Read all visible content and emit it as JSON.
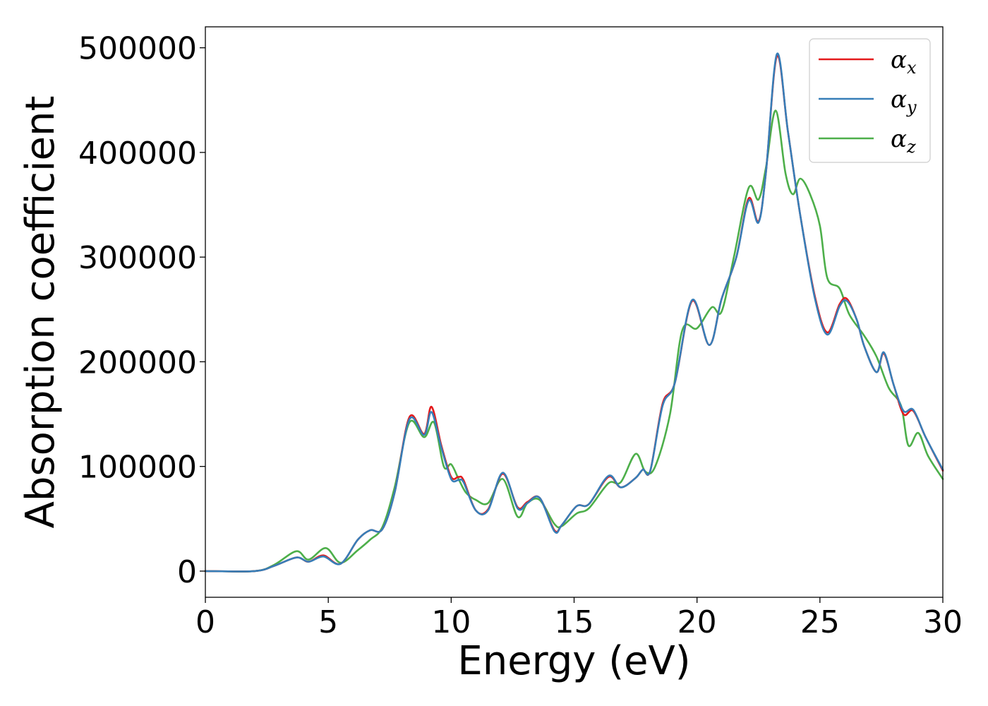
{
  "chart_data": {
    "type": "line",
    "title": "",
    "xlabel": "Energy (eV)",
    "ylabel": "Absorption coefficient",
    "xlim": [
      0,
      30
    ],
    "ylim": [
      -25000,
      520000
    ],
    "xticks": [
      0,
      5,
      10,
      15,
      20,
      25,
      30
    ],
    "yticks": [
      0,
      100000,
      200000,
      300000,
      400000,
      500000
    ],
    "grid": false,
    "legend_position": "top-right",
    "series": [
      {
        "name": "αx",
        "label_main": "α",
        "label_sub": "x",
        "color": "#e41a1c",
        "x": [
          0,
          2,
          2.8,
          3.7,
          4.2,
          4.8,
          5.5,
          6.2,
          6.7,
          7.2,
          7.7,
          8.3,
          8.9,
          9.2,
          9.6,
          10.0,
          10.3,
          10.5,
          11.0,
          11.5,
          12.1,
          12.7,
          13.1,
          13.6,
          14.2,
          14.5,
          15.1,
          15.6,
          16.4,
          16.9,
          17.5,
          17.8,
          18.1,
          18.6,
          19.1,
          19.8,
          20.5,
          21.0,
          21.6,
          22.1,
          22.5,
          22.8,
          23.25,
          23.7,
          24.2,
          24.8,
          25.3,
          25.8,
          26.1,
          26.5,
          26.8,
          27.3,
          27.6,
          28.0,
          28.4,
          28.8,
          29.3,
          30.0
        ],
        "y": [
          0,
          0,
          5000,
          13000,
          9000,
          15000,
          7000,
          30000,
          39000,
          40000,
          75000,
          147000,
          131000,
          157000,
          120000,
          90000,
          90000,
          87000,
          58000,
          59000,
          93000,
          61000,
          66000,
          70000,
          39000,
          44000,
          62000,
          64000,
          90000,
          80000,
          89000,
          97000,
          96000,
          160000,
          180000,
          258000,
          216000,
          260000,
          300000,
          356000,
          334000,
          380000,
          492000,
          420000,
          340000,
          262000,
          228000,
          255000,
          260000,
          240000,
          215000,
          190000,
          208000,
          178000,
          150000,
          153000,
          128000,
          96000
        ]
      },
      {
        "name": "αy",
        "label_main": "α",
        "label_sub": "y",
        "color": "#377eb8",
        "x": [
          0,
          2,
          2.8,
          3.7,
          4.2,
          4.8,
          5.5,
          6.2,
          6.7,
          7.2,
          7.7,
          8.3,
          8.9,
          9.2,
          9.6,
          10.0,
          10.3,
          10.5,
          11.0,
          11.5,
          12.1,
          12.7,
          13.1,
          13.6,
          14.2,
          14.5,
          15.1,
          15.6,
          16.4,
          16.9,
          17.5,
          17.8,
          18.1,
          18.6,
          19.1,
          19.8,
          20.5,
          21.0,
          21.6,
          22.1,
          22.5,
          22.8,
          23.25,
          23.7,
          24.2,
          24.8,
          25.3,
          25.8,
          26.1,
          26.5,
          26.8,
          27.3,
          27.6,
          28.0,
          28.4,
          28.8,
          29.3,
          30.0
        ],
        "y": [
          0,
          0,
          5000,
          13000,
          9000,
          14000,
          7000,
          30000,
          39000,
          40000,
          75000,
          145000,
          130000,
          152000,
          118000,
          88000,
          87000,
          85000,
          58000,
          58000,
          94000,
          60000,
          65000,
          70000,
          38000,
          44000,
          62000,
          64000,
          91000,
          80000,
          89000,
          97000,
          96000,
          158000,
          180000,
          259000,
          216000,
          260000,
          300000,
          354000,
          333000,
          380000,
          494000,
          420000,
          340000,
          260000,
          226000,
          253000,
          258000,
          240000,
          215000,
          190000,
          209000,
          178000,
          153000,
          154000,
          128000,
          97000
        ]
      },
      {
        "name": "αz",
        "label_main": "α",
        "label_sub": "z",
        "color": "#4daf4a",
        "x": [
          0,
          2,
          2.8,
          3.7,
          4.2,
          4.9,
          5.5,
          6.2,
          6.7,
          7.2,
          7.7,
          8.3,
          8.9,
          9.3,
          9.7,
          10.0,
          10.3,
          10.6,
          11.0,
          11.5,
          12.1,
          12.7,
          13.1,
          13.6,
          14.2,
          14.5,
          15.1,
          15.6,
          16.4,
          16.9,
          17.5,
          17.9,
          18.3,
          18.9,
          19.4,
          20.0,
          20.6,
          21.0,
          21.5,
          22.1,
          22.5,
          22.8,
          23.2,
          23.6,
          23.9,
          24.2,
          24.6,
          25.0,
          25.3,
          25.8,
          26.2,
          26.8,
          27.3,
          27.8,
          28.3,
          28.6,
          29.0,
          29.4,
          30.0
        ],
        "y": [
          0,
          0,
          6000,
          19000,
          11000,
          22000,
          8000,
          20000,
          30000,
          42000,
          80000,
          142000,
          128000,
          142000,
          100000,
          102000,
          88000,
          75000,
          68000,
          65000,
          88000,
          52000,
          65000,
          68000,
          45000,
          43000,
          55000,
          60000,
          84000,
          85000,
          112000,
          95000,
          100000,
          150000,
          230000,
          232000,
          252000,
          248000,
          300000,
          366000,
          355000,
          385000,
          440000,
          380000,
          360000,
          375000,
          360000,
          330000,
          280000,
          270000,
          245000,
          225000,
          205000,
          175000,
          158000,
          120000,
          132000,
          110000,
          88000
        ]
      }
    ]
  }
}
